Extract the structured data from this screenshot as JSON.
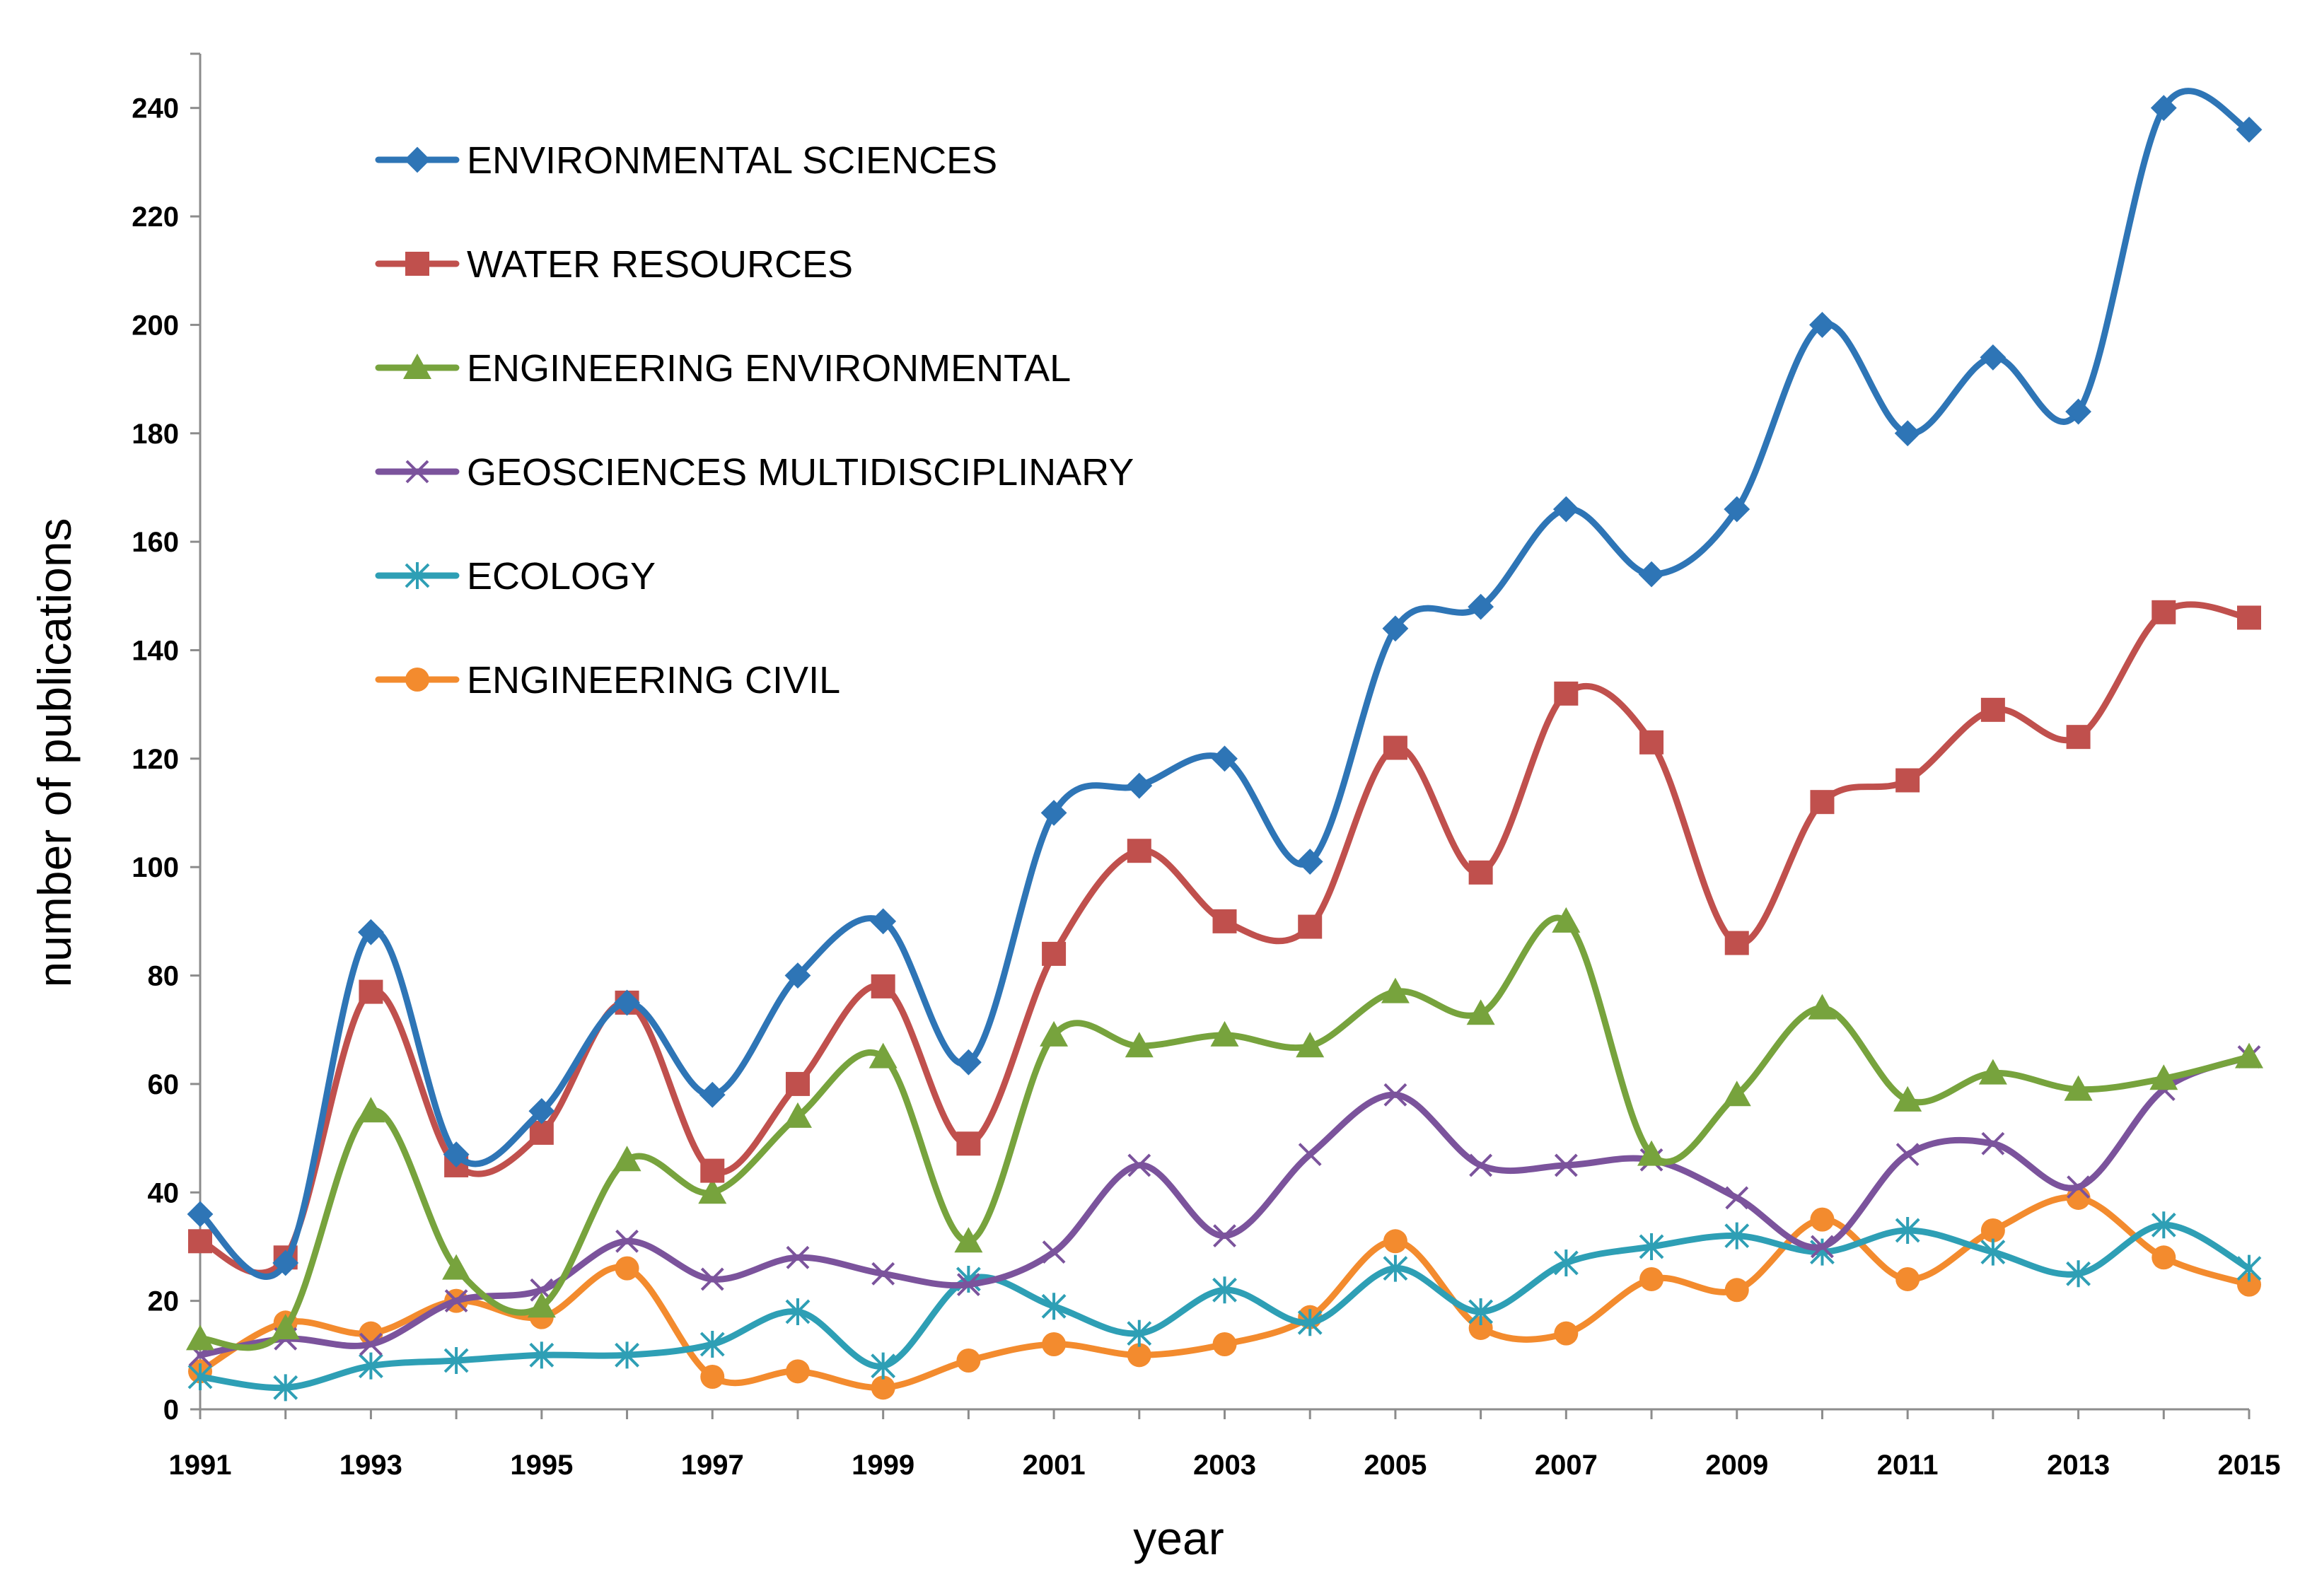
{
  "chart_data": {
    "type": "line",
    "title": "",
    "xlabel": "year",
    "ylabel": "number of publications",
    "x": [
      1991,
      1992,
      1993,
      1994,
      1995,
      1996,
      1997,
      1998,
      1999,
      2000,
      2001,
      2002,
      2003,
      2004,
      2005,
      2006,
      2007,
      2008,
      2009,
      2010,
      2011,
      2012,
      2013,
      2014,
      2015
    ],
    "x_tick_labels": [
      "1991",
      "1993",
      "1995",
      "1997",
      "1999",
      "2001",
      "2003",
      "2005",
      "2007",
      "2009",
      "2011",
      "2013",
      "2015"
    ],
    "xlim": [
      1991,
      2015
    ],
    "ylim": [
      0,
      250
    ],
    "y_ticks": [
      0,
      20,
      40,
      60,
      80,
      100,
      120,
      140,
      160,
      180,
      200,
      220,
      240
    ],
    "legend_position": "top-left",
    "grid": false,
    "series": [
      {
        "name": "ENVIRONMENTAL SCIENCES",
        "color": "#2E75B6",
        "marker": "diamond",
        "values": [
          36,
          27,
          88,
          47,
          55,
          75,
          58,
          80,
          90,
          64,
          110,
          115,
          120,
          101,
          144,
          148,
          166,
          154,
          166,
          200,
          180,
          194,
          184,
          240,
          236
        ]
      },
      {
        "name": "WATER RESOURCES",
        "color": "#C0504D",
        "marker": "square",
        "values": [
          31,
          28,
          77,
          45,
          51,
          75,
          44,
          60,
          78,
          49,
          84,
          103,
          90,
          89,
          122,
          99,
          132,
          123,
          86,
          112,
          116,
          129,
          124,
          147,
          146
        ]
      },
      {
        "name": "ENGINEERING ENVIRONMENTAL",
        "color": "#77A33D",
        "marker": "triangle",
        "values": [
          13,
          15,
          55,
          26,
          19,
          46,
          40,
          54,
          65,
          31,
          69,
          67,
          69,
          67,
          77,
          73,
          90,
          47,
          58,
          74,
          57,
          62,
          59,
          61,
          65
        ]
      },
      {
        "name": "GEOSCIENCES MULTIDISCIPLINARY",
        "color": "#7B539C",
        "marker": "x",
        "values": [
          10,
          13,
          12,
          20,
          22,
          31,
          24,
          28,
          25,
          23,
          29,
          45,
          32,
          47,
          58,
          45,
          45,
          46,
          39,
          30,
          47,
          49,
          41,
          59,
          65
        ]
      },
      {
        "name": "ECOLOGY",
        "color": "#2E9FB5",
        "marker": "star",
        "values": [
          6,
          4,
          8,
          9,
          10,
          10,
          12,
          18,
          8,
          24,
          19,
          14,
          22,
          16,
          26,
          18,
          27,
          30,
          32,
          29,
          33,
          29,
          25,
          34,
          26
        ]
      },
      {
        "name": "ENGINEERING CIVIL",
        "color": "#F38B2E",
        "marker": "circle",
        "values": [
          7,
          16,
          14,
          20,
          17,
          26,
          6,
          7,
          4,
          9,
          12,
          10,
          12,
          17,
          31,
          15,
          14,
          24,
          22,
          35,
          24,
          33,
          39,
          28,
          23
        ]
      }
    ]
  }
}
